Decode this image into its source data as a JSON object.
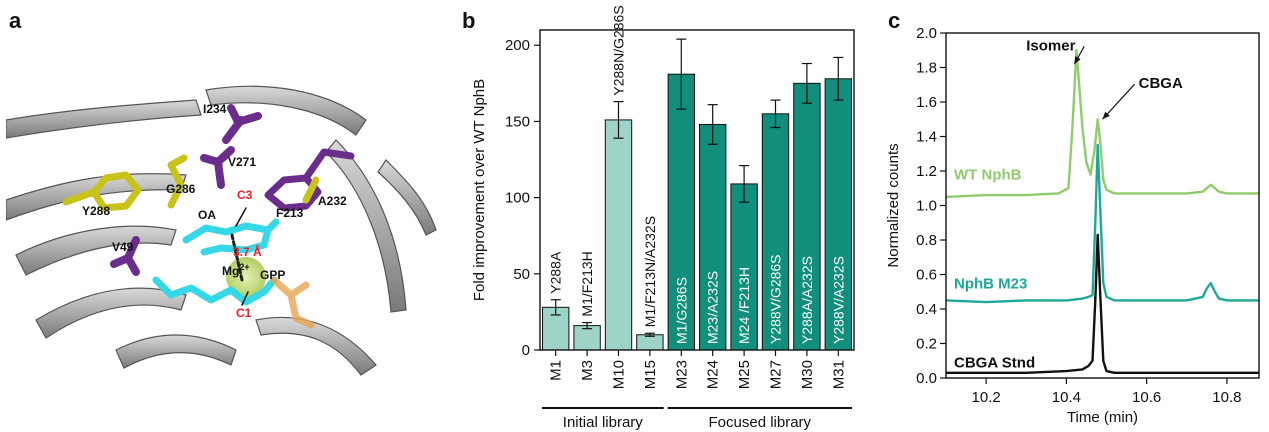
{
  "panel_a": {
    "letter": "a",
    "residues": {
      "i234": "I234",
      "v271": "V271",
      "g286": "G286",
      "y288": "Y288",
      "f213": "F213",
      "a232": "A232",
      "v49": "V49",
      "c3": "C3",
      "oa": "OA",
      "distance": "3.7 Å",
      "mg": "Mg",
      "mg_charge": "2+",
      "gpp": "GPP",
      "c1": "C1"
    },
    "colors": {
      "yellow": "#c8c21b",
      "purple": "#6a2d8c",
      "cyan": "#36d8e8",
      "orange": "#e8a452",
      "red": "#e8202a"
    }
  },
  "chart_data": [
    {
      "panel": "b",
      "type": "bar",
      "ylabel": "Fold improvement over WT NphB",
      "ylim": [
        0,
        210
      ],
      "yticks": [
        0,
        50,
        100,
        150,
        200
      ],
      "categories": [
        "M1",
        "M3",
        "M10",
        "M15",
        "M23",
        "M24",
        "M25",
        "M27",
        "M30",
        "M31"
      ],
      "values": [
        28,
        16,
        151,
        10,
        181,
        148,
        109,
        155,
        175,
        178
      ],
      "errors": [
        5,
        2,
        12,
        1,
        23,
        13,
        12,
        9,
        13,
        14
      ],
      "bar_labels": [
        "Y288A",
        "M1/F213H",
        "Y288N/G286S",
        "M1/F213N/A232S",
        "M1/G286S",
        "M23/A232S",
        "M24 /F213H",
        "Y288V/G286S",
        "Y288A/A232S",
        "Y288V/A232S"
      ],
      "groups": [
        {
          "label": "Initial library",
          "start": 0,
          "end": 3,
          "color": "#9ed3c7"
        },
        {
          "label": "Focused library",
          "start": 4,
          "end": 9,
          "color": "#118f7c"
        }
      ]
    },
    {
      "panel": "c",
      "type": "line",
      "xlabel": "Time (min)",
      "ylabel": "Normalized counts",
      "xlim": [
        10.1,
        10.88
      ],
      "ylim": [
        0,
        2.0
      ],
      "xticks": [
        10.2,
        10.4,
        10.6,
        10.8
      ],
      "yticks": [
        0.0,
        0.2,
        0.4,
        0.6,
        0.8,
        1.0,
        1.2,
        1.4,
        1.6,
        1.8,
        2.0
      ],
      "series": [
        {
          "name": "WT NphB",
          "color": "#8fcc6e",
          "x": [
            10.1,
            10.2,
            10.3,
            10.38,
            10.405,
            10.415,
            10.425,
            10.432,
            10.44,
            10.45,
            10.46,
            10.47,
            10.478,
            10.485,
            10.492,
            10.5,
            10.52,
            10.6,
            10.7,
            10.74,
            10.75,
            10.76,
            10.77,
            10.78,
            10.8,
            10.88
          ],
          "y": [
            1.05,
            1.06,
            1.06,
            1.07,
            1.1,
            1.45,
            1.9,
            1.7,
            1.45,
            1.25,
            1.18,
            1.32,
            1.5,
            1.35,
            1.15,
            1.09,
            1.07,
            1.07,
            1.07,
            1.08,
            1.1,
            1.12,
            1.1,
            1.08,
            1.07,
            1.07
          ]
        },
        {
          "name": "NphB M23",
          "color": "#1fa898",
          "x": [
            10.1,
            10.2,
            10.3,
            10.4,
            10.44,
            10.455,
            10.465,
            10.472,
            10.478,
            10.485,
            10.492,
            10.5,
            10.52,
            10.6,
            10.7,
            10.74,
            10.75,
            10.76,
            10.77,
            10.78,
            10.8,
            10.88
          ],
          "y": [
            0.45,
            0.44,
            0.45,
            0.45,
            0.46,
            0.47,
            0.48,
            0.9,
            1.35,
            0.95,
            0.55,
            0.47,
            0.45,
            0.45,
            0.45,
            0.47,
            0.52,
            0.55,
            0.5,
            0.46,
            0.45,
            0.45
          ]
        },
        {
          "name": "CBGA Stnd",
          "color": "#111111",
          "x": [
            10.1,
            10.2,
            10.3,
            10.4,
            10.44,
            10.455,
            10.465,
            10.472,
            10.478,
            10.485,
            10.492,
            10.5,
            10.52,
            10.6,
            10.7,
            10.8,
            10.88
          ],
          "y": [
            0.03,
            0.03,
            0.03,
            0.04,
            0.05,
            0.07,
            0.1,
            0.45,
            0.83,
            0.45,
            0.1,
            0.04,
            0.03,
            0.03,
            0.03,
            0.03,
            0.03
          ]
        }
      ],
      "annotations": [
        {
          "text": "Isomer",
          "x": 10.3,
          "y": 1.9,
          "arrow_to": [
            10.42,
            1.82
          ]
        },
        {
          "text": "CBGA",
          "x": 10.58,
          "y": 1.68,
          "arrow_to": [
            10.49,
            1.5
          ]
        }
      ]
    }
  ],
  "panel_b_letter": "b",
  "panel_c_letter": "c"
}
